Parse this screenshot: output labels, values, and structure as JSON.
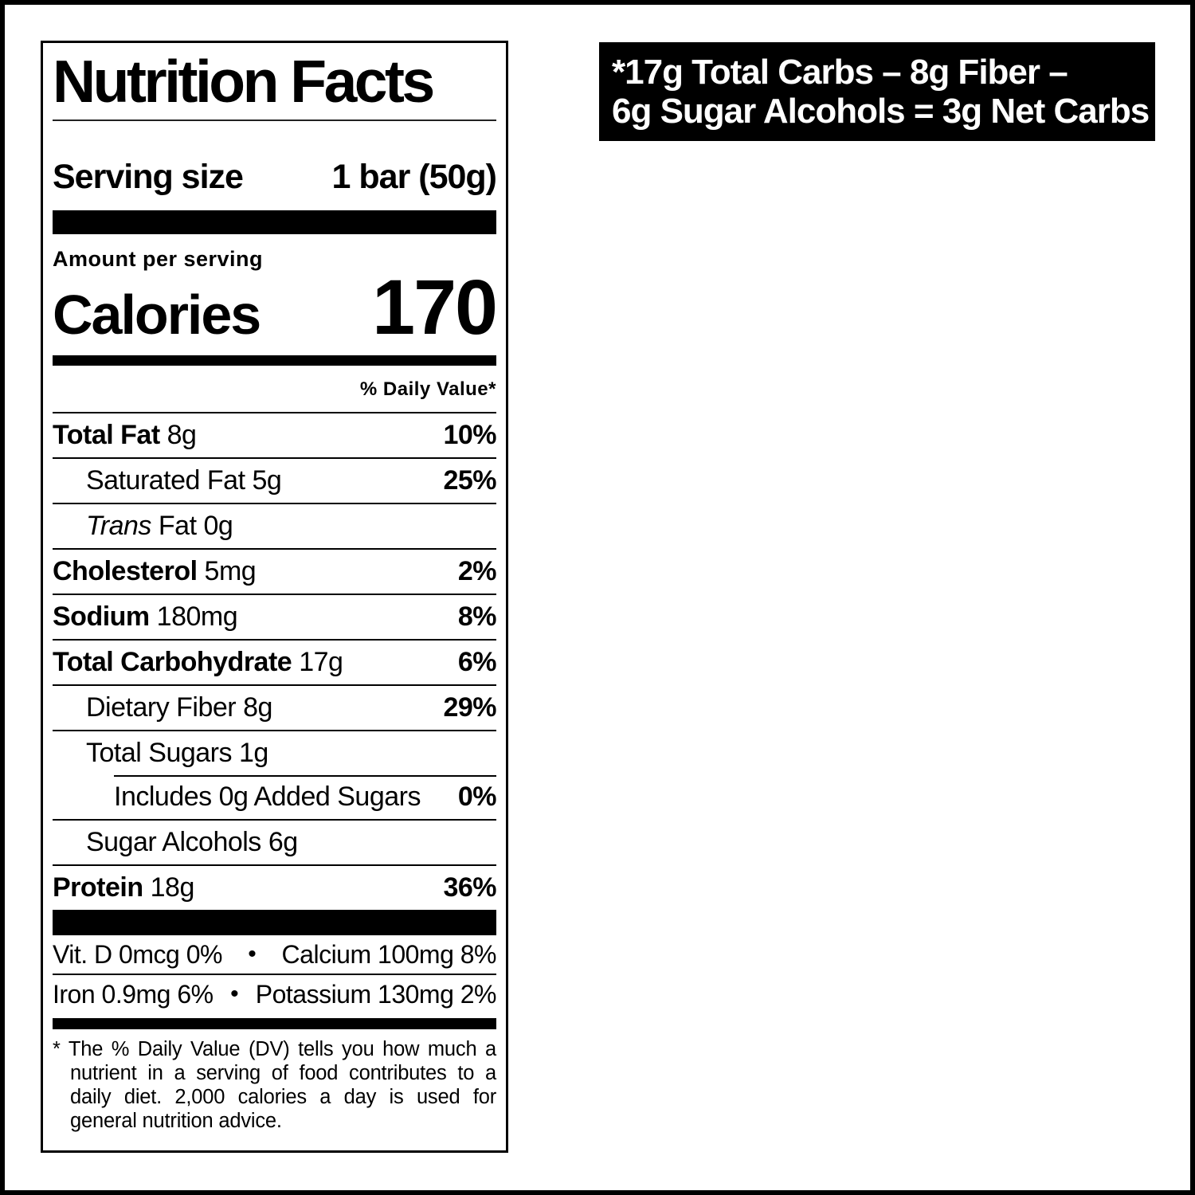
{
  "page": {
    "background": "#ffffff",
    "border_color": "#000000"
  },
  "banner": {
    "bg": "#000000",
    "text_color": "#ffffff",
    "line1": "*17g Total Carbs – 8g Fiber –",
    "line2": "6g Sugar Alcohols = 3g Net Carbs"
  },
  "label": {
    "title": "Nutrition Facts",
    "serving_size_label": "Serving size",
    "serving_size_value": "1 bar (50g)",
    "amount_per_serving": "Amount per serving",
    "calories_label": "Calories",
    "calories_value": "170",
    "daily_value_header": "% Daily Value*",
    "rows": [
      {
        "name": "Total Fat",
        "amount": "8g",
        "dv": "10%"
      },
      {
        "name": "Saturated Fat",
        "amount": "5g",
        "dv": "25%"
      },
      {
        "name_italic": "Trans",
        "name": "Fat",
        "amount": "0g",
        "dv": ""
      },
      {
        "name": "Cholesterol",
        "amount": "5mg",
        "dv": "2%"
      },
      {
        "name": "Sodium",
        "amount": "180mg",
        "dv": "8%"
      },
      {
        "name": "Total Carbohydrate",
        "amount": "17g",
        "dv": "6%"
      },
      {
        "name": "Dietary Fiber",
        "amount": "8g",
        "dv": "29%"
      },
      {
        "name": "Total Sugars",
        "amount": "1g",
        "dv": ""
      },
      {
        "name": "Includes 0g Added Sugars",
        "amount": "",
        "dv": "0%"
      },
      {
        "name": "Sugar Alcohols",
        "amount": "6g",
        "dv": ""
      },
      {
        "name": "Protein",
        "amount": "18g",
        "dv": "36%"
      }
    ],
    "micronutrients": {
      "bullet": "•",
      "row1_left": "Vit. D 0mcg 0%",
      "row1_right": "Calcium 100mg 8%",
      "row2_left": "Iron 0.9mg 6%",
      "row2_right": "Potassium 130mg 2%"
    },
    "footnote": "* The % Daily Value (DV) tells you how much a nutrient in a serving of food contributes to a daily diet. 2,000 calories a day is used for general nutrition advice."
  }
}
